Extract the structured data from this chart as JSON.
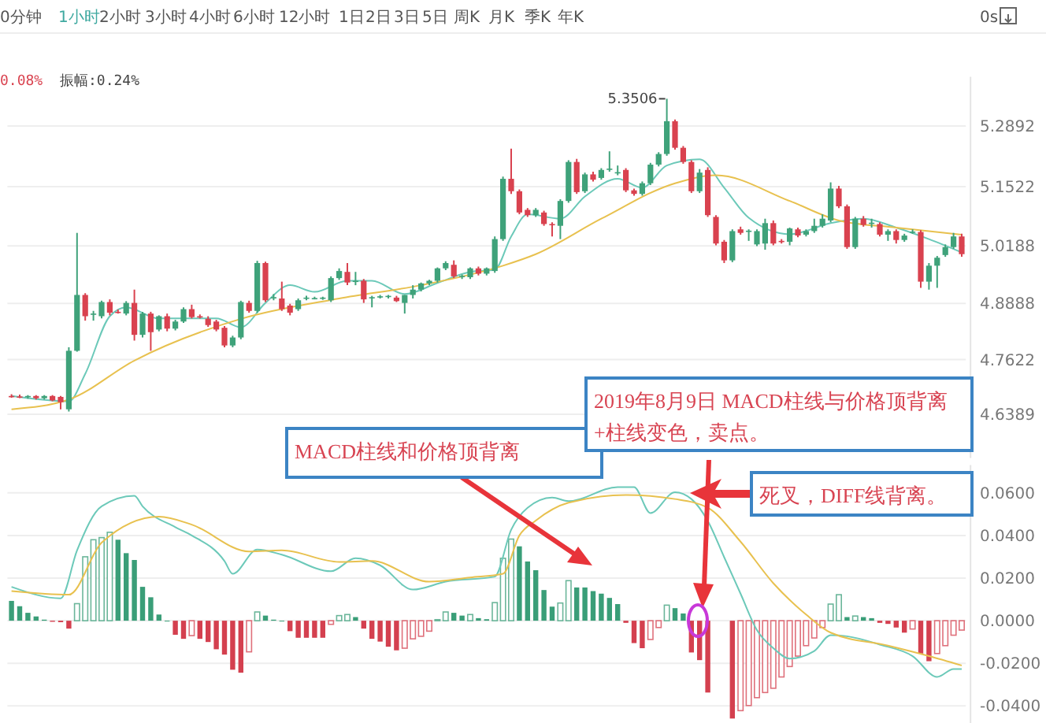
{
  "chart_data": [
    {
      "type": "candlestick",
      "grid": "y",
      "tick_labels": "y",
      "colors": [
        "#d9424f",
        "#d9424f",
        "#3fa27a",
        "#d9424f",
        "#3fa27a",
        "#d9424f",
        "#d9424f",
        "#3fa27a",
        "#3fa27a",
        "#d9424f",
        "#3fa27a",
        "#3fa27a",
        "#d9424f",
        "#d9424f",
        "#3fa27a",
        "#d9424f",
        "#3fa27a",
        "#d9424f",
        "#3fa27a",
        "#d9424f",
        "#3fa27a",
        "#3fa27a",
        "#d9424f",
        "#d9424f",
        "#d9424f",
        "#d9424f",
        "#d9424f",
        "#3fa27a",
        "#3fa27a",
        "#d9424f",
        "#3fa27a",
        "#d9424f",
        "#3fa27a",
        "#d9424f",
        "#d9424f",
        "#3fa27a",
        "#3fa27a",
        "#3fa27a",
        "#3fa27a",
        "#3fa27a",
        "#3fa27a",
        "#d9424f",
        "#3fa27a",
        "#d9424f",
        "#3fa27a",
        "#3fa27a",
        "#3fa27a",
        "#d9424f",
        "#3fa27a",
        "#3fa27a",
        "#3fa27a",
        "#3fa27a",
        "#3fa27a",
        "#3fa27a",
        "#d9424f",
        "#3fa27a",
        "#3fa27a",
        "#d9424f",
        "#3fa27a",
        "#3fa27a",
        "#3fa27a",
        "#d9424f",
        "#d9424f",
        "#d9424f",
        "#3fa27a",
        "#d9424f",
        "#d9424f",
        "#3fa27a",
        "#3fa27a",
        "#d9424f",
        "#3fa27a",
        "#d9424f",
        "#3fa27a",
        "#3fa27a",
        "#3fa27a",
        "#d9424f",
        "#d9424f",
        "#3fa27a",
        "#3fa27a",
        "#3fa27a",
        "#3fa27a",
        "#d9424f",
        "#d9424f",
        "#d9424f",
        "#3fa27a",
        "#d9424f",
        "#d9424f",
        "#d9424f",
        "#3fa27a",
        "#d9424f",
        "#3fa27a",
        "#3fa27a",
        "#3fa27a",
        "#d9424f",
        "#d9424f",
        "#3fa27a",
        "#d9424f",
        "#3fa27a",
        "#3fa27a",
        "#3fa27a",
        "#3fa27a",
        "#d9424f",
        "#d9424f",
        "#3fa27a",
        "#d9424f",
        "#3fa27a",
        "#d9424f",
        "#3fa27a",
        "#d9424f",
        "#3fa27a",
        "#3fa27a",
        "#d9424f",
        "#3fa27a",
        "#3fa27a",
        "#3fa27a",
        "#3fa27a",
        "#d9424f"
      ],
      "annotations": [
        "0分钟",
        "1小时",
        "2小时",
        "3小时",
        "4小时",
        "6小时",
        "12小时",
        "1日",
        "2日",
        "3日",
        "5日",
        "周K",
        "月K",
        "季K",
        "年K",
        "0s",
        "0.08%",
        "振幅:0.24%",
        "5.3506"
      ],
      "ylim": [
        4.54,
        5.4
      ],
      "yticks": [
        4.6389,
        4.7622,
        4.8888,
        5.0188,
        5.1522,
        5.2892
      ],
      "categories": [
        null,
        null,
        null,
        null,
        null,
        null,
        null,
        null,
        null,
        null,
        null,
        null,
        null,
        null,
        null,
        null,
        null,
        null,
        null,
        null,
        null,
        null,
        null,
        null,
        null,
        null,
        null,
        null,
        null,
        null,
        null,
        null,
        null,
        null,
        null,
        null,
        null,
        null,
        null,
        null,
        null,
        null,
        null,
        null,
        null,
        null,
        null,
        null,
        null,
        null,
        null,
        null,
        null,
        null,
        null,
        null,
        null,
        null,
        null,
        null,
        null,
        null,
        null,
        null,
        null,
        null,
        null,
        null,
        null,
        null,
        null,
        null,
        null,
        null,
        null,
        null,
        null,
        null,
        null,
        null,
        null,
        null,
        null,
        null,
        null,
        null,
        null,
        null,
        null,
        null,
        null,
        null,
        null,
        null,
        null,
        null,
        null,
        null,
        null,
        null,
        null,
        null,
        null,
        null,
        null,
        null,
        null,
        null,
        null,
        null,
        null,
        null,
        null,
        null,
        null,
        null,
        null
      ],
      "ohlc": [
        [
          4.68,
          4.684,
          4.676,
          4.679
        ],
        [
          4.679,
          4.683,
          4.675,
          4.678
        ],
        [
          4.678,
          4.682,
          4.674,
          4.68
        ],
        [
          4.68,
          4.682,
          4.672,
          4.675
        ],
        [
          4.675,
          4.682,
          4.672,
          4.68
        ],
        [
          4.68,
          4.682,
          4.668,
          4.67
        ],
        [
          4.678,
          4.68,
          4.65,
          4.666
        ],
        [
          4.65,
          4.79,
          4.645,
          4.782
        ],
        [
          4.782,
          5.048,
          4.78,
          4.908
        ],
        [
          4.908,
          4.912,
          4.85,
          4.86
        ],
        [
          4.864,
          4.872,
          4.85,
          4.866
        ],
        [
          4.86,
          4.895,
          4.855,
          4.892
        ],
        [
          4.892,
          4.898,
          4.862,
          4.868
        ],
        [
          4.87,
          4.875,
          4.866,
          4.869
        ],
        [
          4.866,
          4.894,
          4.862,
          4.89
        ],
        [
          4.89,
          4.92,
          4.805,
          4.818
        ],
        [
          4.818,
          4.87,
          4.812,
          4.866
        ],
        [
          4.866,
          4.87,
          4.782,
          4.824
        ],
        [
          4.83,
          4.862,
          4.826,
          4.86
        ],
        [
          4.86,
          4.866,
          4.826,
          4.832
        ],
        [
          4.832,
          4.852,
          4.828,
          4.848
        ],
        [
          4.848,
          4.88,
          4.845,
          4.876
        ],
        [
          4.876,
          4.886,
          4.855,
          4.858
        ],
        [
          4.86,
          4.864,
          4.855,
          4.859
        ],
        [
          4.854,
          4.86,
          4.836,
          4.84
        ],
        [
          4.848,
          4.852,
          4.826,
          4.83
        ],
        [
          4.834,
          4.838,
          4.79,
          4.794
        ],
        [
          4.794,
          4.816,
          4.79,
          4.812
        ],
        [
          4.812,
          4.895,
          4.808,
          4.892
        ],
        [
          4.89,
          4.895,
          4.868,
          4.872
        ],
        [
          4.872,
          4.985,
          4.868,
          4.98
        ],
        [
          4.98,
          4.983,
          4.892,
          4.896
        ],
        [
          4.902,
          4.91,
          4.896,
          4.903
        ],
        [
          4.9,
          4.938,
          4.872,
          4.876
        ],
        [
          4.884,
          4.888,
          4.862,
          4.868
        ],
        [
          4.876,
          4.9,
          4.872,
          4.896
        ],
        [
          4.9,
          4.906,
          4.896,
          4.902
        ],
        [
          4.9,
          4.904,
          4.898,
          4.901
        ],
        [
          4.9,
          4.904,
          4.897,
          4.902
        ],
        [
          4.896,
          4.95,
          4.892,
          4.946
        ],
        [
          4.946,
          4.968,
          4.942,
          4.962
        ],
        [
          4.96,
          4.98,
          4.93,
          4.936
        ],
        [
          4.938,
          4.96,
          4.93,
          4.94
        ],
        [
          4.94,
          4.944,
          4.89,
          4.898
        ],
        [
          4.902,
          4.906,
          4.88,
          4.903
        ],
        [
          4.904,
          4.908,
          4.9,
          4.905
        ],
        [
          4.904,
          4.908,
          4.9,
          4.906
        ],
        [
          4.902,
          4.906,
          4.892,
          4.894
        ],
        [
          4.89,
          4.908,
          4.866,
          4.908
        ],
        [
          4.908,
          4.93,
          4.9,
          4.92
        ],
        [
          4.92,
          4.936,
          4.916,
          4.934
        ],
        [
          4.934,
          4.942,
          4.93,
          4.94
        ],
        [
          4.94,
          4.97,
          4.936,
          4.968
        ],
        [
          4.968,
          4.984,
          4.964,
          4.98
        ],
        [
          4.976,
          4.986,
          4.946,
          4.95
        ],
        [
          4.95,
          4.954,
          4.944,
          4.951
        ],
        [
          4.948,
          4.97,
          4.944,
          4.968
        ],
        [
          4.968,
          4.972,
          4.952,
          4.956
        ],
        [
          4.956,
          4.97,
          4.952,
          4.968
        ],
        [
          4.962,
          5.04,
          4.958,
          5.034
        ],
        [
          5.034,
          5.175,
          5.03,
          5.17
        ],
        [
          5.17,
          5.238,
          5.136,
          5.142
        ],
        [
          5.142,
          5.146,
          5.09,
          5.094
        ],
        [
          5.1,
          5.104,
          5.084,
          5.088
        ],
        [
          5.088,
          5.104,
          5.084,
          5.1
        ],
        [
          5.094,
          5.098,
          5.064,
          5.068
        ],
        [
          5.068,
          5.072,
          5.04,
          5.066
        ],
        [
          5.064,
          5.124,
          5.034,
          5.12
        ],
        [
          5.12,
          5.212,
          5.116,
          5.208
        ],
        [
          5.208,
          5.215,
          5.136,
          5.14
        ],
        [
          5.142,
          5.184,
          5.138,
          5.18
        ],
        [
          5.18,
          5.186,
          5.164,
          5.168
        ],
        [
          5.172,
          5.194,
          5.168,
          5.19
        ],
        [
          5.192,
          5.232,
          5.186,
          5.193
        ],
        [
          5.184,
          5.2,
          5.178,
          5.185
        ],
        [
          5.19,
          5.194,
          5.14,
          5.144
        ],
        [
          5.144,
          5.148,
          5.132,
          5.136
        ],
        [
          5.136,
          5.164,
          5.132,
          5.16
        ],
        [
          5.16,
          5.206,
          5.156,
          5.202
        ],
        [
          5.202,
          5.23,
          5.198,
          5.226
        ],
        [
          5.226,
          5.3506,
          5.222,
          5.3
        ],
        [
          5.3,
          5.304,
          5.236,
          5.24
        ],
        [
          5.24,
          5.244,
          5.204,
          5.208
        ],
        [
          5.208,
          5.212,
          5.138,
          5.142
        ],
        [
          5.142,
          5.192,
          5.138,
          5.184
        ],
        [
          5.19,
          5.196,
          5.084,
          5.088
        ],
        [
          5.084,
          5.088,
          5.02,
          5.024
        ],
        [
          5.028,
          5.032,
          4.98,
          4.986
        ],
        [
          4.986,
          5.056,
          4.982,
          5.052
        ],
        [
          5.056,
          5.062,
          5.044,
          5.048
        ],
        [
          5.052,
          5.056,
          5.03,
          5.053
        ],
        [
          5.022,
          5.056,
          5.018,
          5.052
        ],
        [
          5.024,
          5.08,
          5.01,
          5.07
        ],
        [
          5.07,
          5.076,
          5.02,
          5.024
        ],
        [
          5.03,
          5.034,
          5.024,
          5.028
        ],
        [
          5.028,
          5.06,
          5.02,
          5.058
        ],
        [
          5.056,
          5.06,
          5.038,
          5.042
        ],
        [
          5.044,
          5.056,
          5.04,
          5.052
        ],
        [
          5.052,
          5.08,
          5.048,
          5.064
        ],
        [
          5.064,
          5.09,
          5.06,
          5.08
        ],
        [
          5.076,
          5.162,
          5.072,
          5.148
        ],
        [
          5.148,
          5.154,
          5.104,
          5.108
        ],
        [
          5.108,
          5.112,
          5.012,
          5.016
        ],
        [
          5.016,
          5.084,
          5.012,
          5.08
        ],
        [
          5.08,
          5.086,
          5.062,
          5.066
        ],
        [
          5.07,
          5.08,
          5.06,
          5.071
        ],
        [
          5.068,
          5.072,
          5.04,
          5.044
        ],
        [
          5.044,
          5.056,
          5.03,
          5.052
        ],
        [
          5.052,
          5.056,
          5.024,
          5.032
        ],
        [
          5.032,
          5.046,
          5.028,
          5.042
        ],
        [
          5.05,
          5.056,
          5.046,
          5.051
        ],
        [
          5.05,
          5.054,
          4.924,
          4.938
        ],
        [
          4.938,
          4.98,
          4.92,
          4.974
        ],
        [
          4.974,
          4.996,
          4.924,
          4.992
        ],
        [
          4.998,
          5.022,
          4.994,
          5.016
        ],
        [
          5.016,
          5.048,
          5.012,
          5.04
        ],
        [
          5.04,
          5.046,
          4.994,
          5.0
        ]
      ],
      "series": [
        {
          "type": "line",
          "color": "#6cc9b9",
          "values": [
            4.68,
            null,
            null,
            null,
            null,
            null,
            null,
            4.668,
            null,
            4.73,
            null,
            null,
            4.86,
            null,
            4.88,
            null,
            null,
            null,
            4.855,
            null,
            null,
            null,
            null,
            null,
            null,
            4.855,
            null,
            null,
            4.835,
            null,
            null,
            4.89,
            null,
            null,
            4.93,
            null,
            null,
            4.915,
            null,
            null,
            null,
            4.94,
            null,
            null,
            4.94,
            null,
            null,
            null,
            4.91,
            null,
            null,
            null,
            4.935,
            null,
            null,
            null,
            4.96,
            null,
            null,
            4.965,
            null,
            5.04,
            null,
            5.09,
            null,
            null,
            null,
            5.08,
            null,
            null,
            5.13,
            null,
            null,
            null,
            5.17,
            null,
            null,
            5.15,
            null,
            null,
            5.2,
            null,
            null,
            null,
            5.214,
            null,
            null,
            5.15,
            null,
            null,
            5.082,
            null,
            null,
            null,
            null,
            5.045,
            null,
            null,
            null,
            null,
            5.07,
            null,
            null,
            null,
            5.08,
            null,
            null,
            null,
            5.06,
            null,
            null,
            null,
            5.034,
            null,
            null,
            null,
            5.004
          ]
        },
        {
          "type": "line",
          "color": "#e8c14f",
          "values": [
            4.65,
            null,
            null,
            null,
            null,
            null,
            null,
            4.672,
            null,
            null,
            null,
            null,
            null,
            null,
            null,
            4.76,
            null,
            null,
            null,
            null,
            null,
            null,
            null,
            null,
            null,
            null,
            null,
            null,
            4.854,
            null,
            null,
            null,
            null,
            null,
            null,
            null,
            null,
            null,
            null,
            null,
            4.9,
            null,
            null,
            null,
            null,
            null,
            null,
            null,
            null,
            null,
            4.93,
            null,
            null,
            null,
            null,
            null,
            null,
            null,
            null,
            null,
            4.974,
            null,
            null,
            null,
            5.0,
            null,
            null,
            null,
            null,
            null,
            null,
            null,
            5.08,
            null,
            null,
            null,
            null,
            null,
            null,
            null,
            null,
            5.16,
            null,
            null,
            null,
            null,
            5.178,
            null,
            null,
            null,
            null,
            null,
            null,
            null,
            null,
            5.12,
            null,
            null,
            null,
            null,
            null,
            5.076,
            null,
            null,
            null,
            null,
            null,
            null,
            5.06,
            null,
            null,
            null,
            null,
            null,
            null,
            null,
            5.044
          ]
        }
      ]
    },
    {
      "type": "bar",
      "grid": "y",
      "tick_labels": "y",
      "annotations": [
        "MACD柱线和价格顶背离",
        "2019年8月9日 MACD柱线与价格顶背离",
        "+柱线变色，卖点。",
        "死叉，DIFF线背离。"
      ],
      "ylim": [
        -0.048,
        0.073
      ],
      "yticks": [
        {
          "value": -0.04,
          "label": "-0.0400"
        },
        {
          "value": -0.02,
          "label": "-0.0200"
        },
        {
          "value": 0,
          "label": "0.0000"
        },
        {
          "value": 0.02,
          "label": "0.0200"
        },
        {
          "value": 0.04,
          "label": "0.0400"
        },
        {
          "value": 0.06,
          "label": "0.0600"
        }
      ],
      "categories": [
        null,
        null,
        null,
        null,
        null,
        null,
        null,
        null,
        null,
        null,
        null,
        null,
        null,
        null,
        null,
        null,
        null,
        null,
        null,
        null,
        null,
        null,
        null,
        null,
        null,
        null,
        null,
        null,
        null,
        null,
        null,
        null,
        null,
        null,
        null,
        null,
        null,
        null,
        null,
        null,
        null,
        null,
        null,
        null,
        null,
        null,
        null,
        null,
        null,
        null,
        null,
        null,
        null,
        null,
        null,
        null,
        null,
        null,
        null,
        null,
        null,
        null,
        null,
        null,
        null,
        null,
        null,
        null,
        null,
        null,
        null,
        null,
        null,
        null,
        null,
        null,
        null,
        null,
        null,
        null,
        null,
        null,
        null,
        null,
        null,
        null,
        null,
        null,
        null,
        null,
        null,
        null,
        null,
        null,
        null,
        null,
        null,
        null,
        null,
        null,
        null,
        null,
        null,
        null,
        null,
        null,
        null,
        null,
        null,
        null,
        null,
        null,
        null,
        null,
        null,
        null,
        null
      ],
      "series": [
        {
          "type": "bar",
          "color": "#3a9e78",
          "values": [
            0.0093,
            0.0068,
            0.0037,
            0.002,
            0.0005,
            null,
            null,
            null,
            0.008,
            0.03,
            0.038,
            0.039,
            0.0415,
            0.038,
            0.0317,
            0.0285,
            0.0159,
            0.011,
            0.0029,
            0,
            null,
            null,
            null,
            null,
            null,
            null,
            null,
            null,
            null,
            null,
            0.0041,
            0.0024,
            0.0005,
            0,
            null,
            null,
            null,
            null,
            null,
            null,
            0.0024,
            0.0029,
            0.0017,
            null,
            null,
            null,
            null,
            null,
            null,
            null,
            null,
            null,
            0.0005,
            0.0041,
            0.0037,
            0.0024,
            0.0029,
            0.0012,
            0.0007,
            0.0085,
            0.0293,
            0.0383,
            0.0349,
            0.0278,
            0.0237,
            0.0144,
            0.0066,
            0.0083,
            0.0188,
            0.0156,
            0.0156,
            0.0139,
            0.0127,
            0.0107,
            0.0078,
            null,
            null,
            null,
            null,
            null,
            0.0073,
            0.0059,
            0.0034,
            null,
            null,
            null,
            null,
            null,
            null,
            null,
            null,
            null,
            null,
            null,
            null,
            null,
            null,
            null,
            null,
            null,
            0.0078,
            0.0122,
            0.0017,
            0.0022,
            0.0017,
            0.0012,
            null,
            null,
            null,
            null,
            null,
            null,
            null,
            null,
            null,
            null,
            null
          ]
        },
        {
          "type": "bar",
          "color": "#d4404f",
          "values": [
            null,
            null,
            null,
            null,
            null,
            -0.0005,
            -0.0007,
            -0.0037,
            null,
            null,
            null,
            null,
            null,
            null,
            null,
            null,
            null,
            null,
            null,
            null,
            -0.0066,
            -0.0085,
            -0.007,
            -0.0085,
            -0.01,
            -0.0134,
            -0.0159,
            -0.023,
            -0.0244,
            -0.0146,
            null,
            null,
            null,
            null,
            -0.0049,
            -0.008,
            -0.008,
            -0.008,
            -0.008,
            -0.0017,
            null,
            null,
            null,
            -0.0037,
            -0.0085,
            -0.0098,
            -0.0122,
            -0.0139,
            -0.0129,
            -0.0085,
            -0.0073,
            -0.0049,
            null,
            null,
            null,
            null,
            null,
            null,
            null,
            null,
            null,
            null,
            null,
            null,
            null,
            null,
            null,
            null,
            null,
            null,
            null,
            null,
            null,
            null,
            null,
            -0.001,
            -0.0105,
            -0.0129,
            -0.0088,
            -0.0032,
            null,
            null,
            null,
            -0.0149,
            -0.0185,
            -0.0337,
            null,
            null,
            -0.0459,
            -0.0422,
            -0.0398,
            -0.0361,
            -0.0337,
            -0.0317,
            -0.0264,
            -0.0215,
            -0.0166,
            -0.0117,
            -0.0081,
            -0.0032,
            null,
            null,
            null,
            null,
            null,
            null,
            -0.001,
            -0.0015,
            -0.0032,
            -0.0056,
            -0.0039,
            -0.0154,
            -0.019,
            -0.0154,
            -0.0117,
            -0.0068,
            -0.0044
          ]
        },
        {
          "type": "line",
          "color": "#6cc9b9",
          "values": [
            0.0159,
            null,
            null,
            null,
            null,
            null,
            0.0105,
            null,
            0.033,
            null,
            null,
            0.0537,
            null,
            null,
            null,
            0.0586,
            0.0537,
            null,
            null,
            null,
            0.0439,
            null,
            0.04,
            null,
            null,
            null,
            0.028,
            0.022,
            null,
            null,
            0.0334,
            null,
            null,
            0.031,
            null,
            null,
            null,
            null,
            null,
            0.0232,
            null,
            null,
            0.0293,
            null,
            null,
            0.026,
            null,
            null,
            null,
            0.0146,
            null,
            null,
            null,
            0.0183,
            null,
            null,
            null,
            null,
            null,
            0.0207,
            null,
            0.0427,
            null,
            0.053,
            null,
            null,
            0.0578,
            null,
            0.0561,
            null,
            null,
            null,
            null,
            null,
            0.0627,
            null,
            0.0627,
            null,
            0.0505,
            null,
            null,
            0.0603,
            null,
            0.0571,
            null,
            0.0468,
            null,
            0.0298,
            null,
            0.0127,
            null,
            -0.0044,
            null,
            -0.0129,
            null,
            -0.0178,
            null,
            null,
            -0.0142,
            null,
            -0.0068,
            null,
            -0.0073,
            null,
            null,
            null,
            -0.0112,
            null,
            null,
            null,
            -0.0166,
            null,
            null,
            -0.0264,
            null,
            -0.0227,
            -0.0227
          ]
        },
        {
          "type": "line",
          "color": "#e8c14f",
          "values": [
            0.0139,
            null,
            null,
            null,
            null,
            null,
            null,
            0.0122,
            null,
            null,
            null,
            0.0366,
            null,
            null,
            null,
            null,
            null,
            null,
            0.0488,
            null,
            null,
            null,
            0.0451,
            null,
            null,
            null,
            null,
            null,
            null,
            0.0325,
            null,
            null,
            null,
            0.033,
            null,
            null,
            null,
            null,
            null,
            null,
            0.0276,
            null,
            null,
            null,
            0.028,
            null,
            null,
            null,
            null,
            null,
            null,
            0.0183,
            null,
            null,
            null,
            null,
            0.0203,
            null,
            null,
            null,
            0.022,
            null,
            0.04,
            null,
            0.047,
            null,
            null,
            null,
            0.0554,
            null,
            null,
            null,
            null,
            null,
            null,
            0.059,
            null,
            null,
            null,
            null,
            null,
            0.0571,
            null,
            null,
            null,
            0.053,
            null,
            null,
            null,
            0.0371,
            null,
            null,
            null,
            0.0176,
            null,
            null,
            null,
            0.0029,
            null,
            null,
            -0.0056,
            null,
            null,
            null,
            null,
            null,
            null,
            -0.0117,
            null,
            null,
            null,
            null,
            -0.0166,
            null,
            null,
            null,
            -0.021
          ]
        }
      ]
    }
  ]
}
